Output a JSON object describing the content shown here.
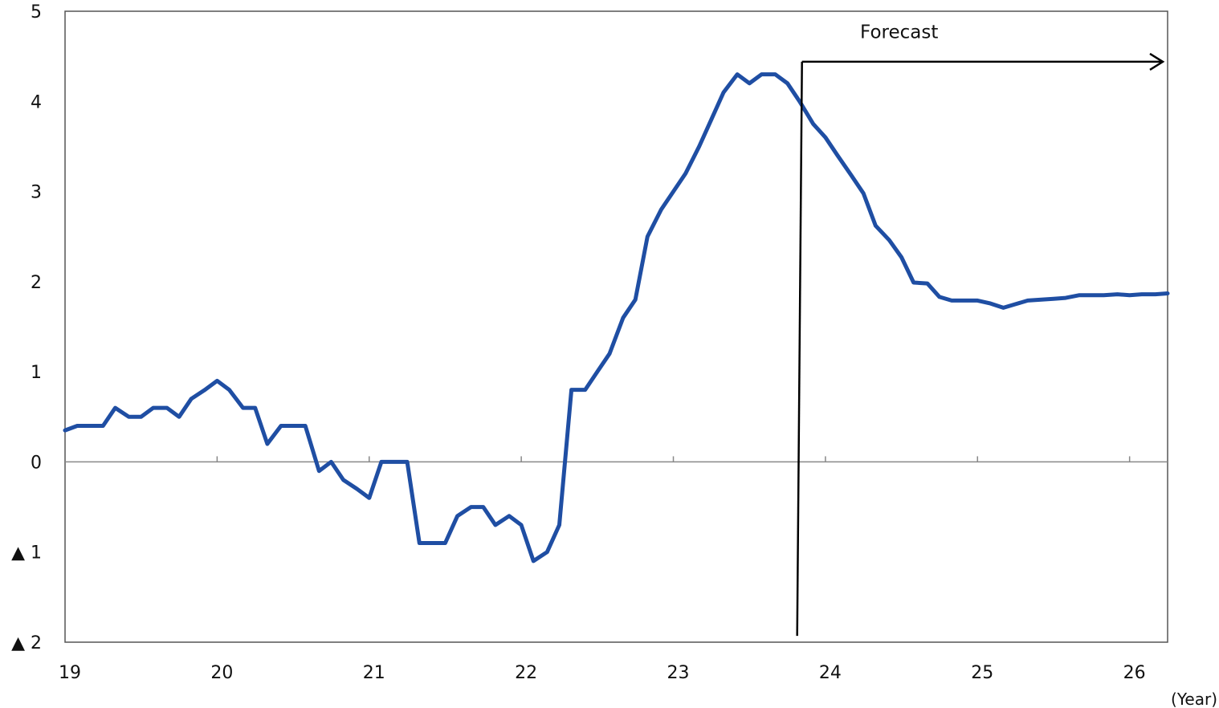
{
  "chart_data": {
    "type": "line",
    "title": "",
    "xlabel": "",
    "ylabel": "",
    "x_unit_label": "(Year)",
    "ylim": [
      -2,
      5
    ],
    "xlim": [
      2019,
      2026.25
    ],
    "grid": false,
    "y_ticks": [
      {
        "value": 5,
        "label": "5"
      },
      {
        "value": 4,
        "label": "4"
      },
      {
        "value": 3,
        "label": "3"
      },
      {
        "value": 2,
        "label": "2"
      },
      {
        "value": 1,
        "label": "1"
      },
      {
        "value": 0,
        "label": "0"
      },
      {
        "value": -1,
        "label": "▲ 1"
      },
      {
        "value": -2,
        "label": "▲ 2"
      }
    ],
    "x_ticks": [
      {
        "value": 2019,
        "label": "19"
      },
      {
        "value": 2020,
        "label": "20"
      },
      {
        "value": 2021,
        "label": "21"
      },
      {
        "value": 2022,
        "label": "22"
      },
      {
        "value": 2023,
        "label": "23"
      },
      {
        "value": 2024,
        "label": "24"
      },
      {
        "value": 2025,
        "label": "25"
      },
      {
        "value": 2026,
        "label": "26"
      }
    ],
    "annotation": {
      "label": "Forecast",
      "start_x": 2023.83
    },
    "line_color": "#1f4ea3",
    "series": [
      {
        "x": [
          2019.0,
          2019.08,
          2019.17,
          2019.25,
          2019.33,
          2019.42,
          2019.5,
          2019.58,
          2019.67,
          2019.75,
          2019.83,
          2019.92,
          2020.0,
          2020.08,
          2020.17,
          2020.25,
          2020.33,
          2020.42,
          2020.5,
          2020.58,
          2020.67,
          2020.75,
          2020.83,
          2020.92,
          2021.0,
          2021.08,
          2021.17,
          2021.25,
          2021.33,
          2021.42,
          2021.5,
          2021.58,
          2021.67,
          2021.75,
          2021.83,
          2021.92,
          2022.0,
          2022.08,
          2022.17,
          2022.25,
          2022.33,
          2022.42,
          2022.5,
          2022.58,
          2022.67,
          2022.75,
          2022.83,
          2022.92,
          2023.0,
          2023.08,
          2023.17,
          2023.25,
          2023.33,
          2023.42,
          2023.5,
          2023.58,
          2023.67,
          2023.75,
          2023.83,
          2023.92,
          2024.0,
          2024.08,
          2024.17,
          2024.25,
          2024.33,
          2024.42,
          2024.5,
          2024.58,
          2024.67,
          2024.75,
          2024.83,
          2024.92,
          2025.0,
          2025.08,
          2025.17,
          2025.25,
          2025.33,
          2025.42,
          2025.5,
          2025.58,
          2025.67,
          2025.75,
          2025.83,
          2025.92,
          2026.0,
          2026.08,
          2026.17,
          2026.25
        ],
        "values": [
          0.35,
          0.4,
          0.4,
          0.4,
          0.6,
          0.5,
          0.5,
          0.6,
          0.6,
          0.5,
          0.7,
          0.8,
          0.9,
          0.8,
          0.6,
          0.6,
          0.2,
          0.4,
          0.4,
          0.4,
          -0.1,
          0.0,
          -0.2,
          -0.3,
          -0.4,
          0.0,
          0.0,
          0.0,
          -0.9,
          -0.9,
          -0.9,
          -0.6,
          -0.5,
          -0.5,
          -0.7,
          -0.6,
          -0.7,
          -1.1,
          -1.0,
          -0.7,
          0.8,
          0.8,
          1.0,
          1.2,
          1.6,
          1.8,
          2.5,
          2.8,
          3.0,
          3.2,
          3.5,
          3.8,
          4.1,
          4.3,
          4.2,
          4.3,
          4.3,
          4.2,
          4.0,
          3.75,
          3.6,
          3.4,
          3.18,
          2.98,
          2.62,
          2.46,
          2.27,
          1.99,
          1.98,
          1.83,
          1.79,
          1.79,
          1.79,
          1.76,
          1.71,
          1.75,
          1.79,
          1.8,
          1.81,
          1.82,
          1.85,
          1.85,
          1.85,
          1.86,
          1.85,
          1.86,
          1.86,
          1.87
        ]
      }
    ]
  }
}
